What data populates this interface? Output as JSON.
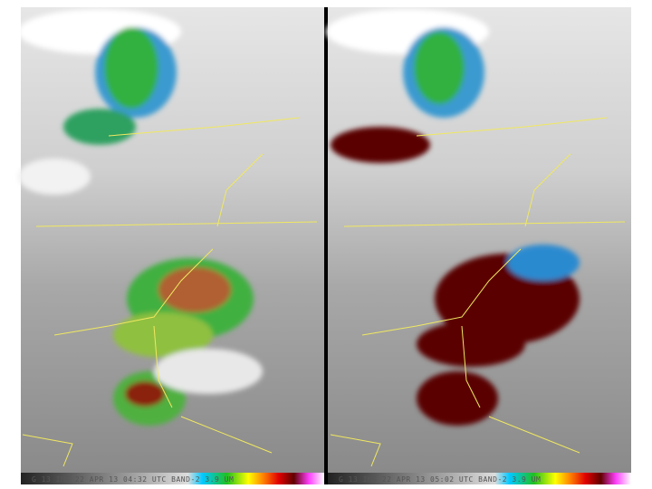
{
  "panels": [
    {
      "caption": "G 13 IMG 22 APR 13 04:32 UTC BAND-2 3.9 UM"
    },
    {
      "caption": "G 13 IMG 22 APR 13 05:02 UTC BAND-2 3.9 UM"
    }
  ]
}
